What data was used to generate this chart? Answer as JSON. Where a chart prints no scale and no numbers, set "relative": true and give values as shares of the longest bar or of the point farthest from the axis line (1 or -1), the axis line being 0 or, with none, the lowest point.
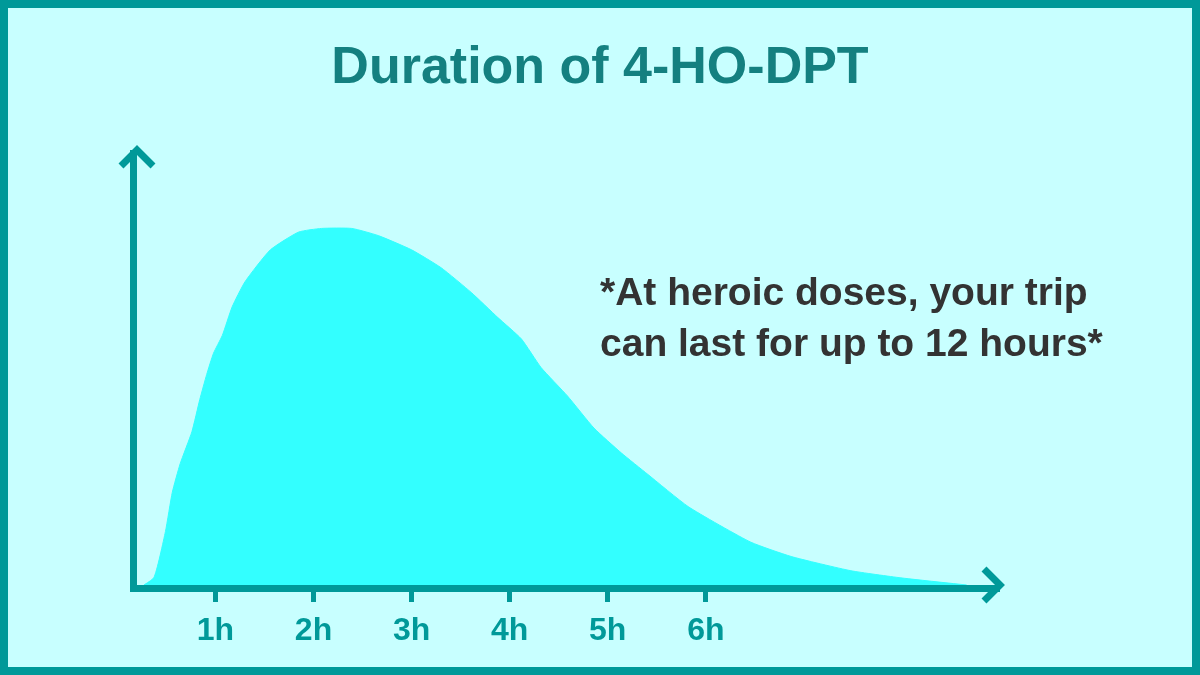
{
  "chart_data": {
    "type": "area",
    "title": "Duration of 4-HO-DPT",
    "x": [
      0.27,
      0.37,
      0.49,
      0.56,
      0.64,
      0.76,
      0.84,
      0.91,
      0.98,
      1.07,
      1.17,
      1.3,
      1.56,
      1.85,
      2.08,
      2.39,
      2.66,
      3.0,
      3.3,
      3.61,
      3.88,
      4.12,
      4.32,
      4.59,
      4.86,
      5.14,
      5.41,
      5.82,
      6.46,
      6.87,
      7.48,
      7.99,
      8.66
    ],
    "values": [
      0,
      0.02,
      0.15,
      0.26,
      0.34,
      0.43,
      0.52,
      0.59,
      0.65,
      0.7,
      0.78,
      0.85,
      0.94,
      0.99,
      1,
      1,
      0.98,
      0.94,
      0.89,
      0.82,
      0.75,
      0.69,
      0.61,
      0.53,
      0.44,
      0.37,
      0.31,
      0.22,
      0.12,
      0.08,
      0.04,
      0.02,
      0
    ],
    "color": "#33ffff",
    "relative": true,
    "xlim": [
      0.2,
      9
    ],
    "xticks": [
      {
        "value": 1,
        "label": "1h"
      },
      {
        "value": 2,
        "label": "2h"
      },
      {
        "value": 3,
        "label": "3h"
      },
      {
        "value": 4,
        "label": "4h"
      },
      {
        "value": 5,
        "label": "5h"
      },
      {
        "value": 6,
        "label": "6h"
      }
    ],
    "annotations": [
      "*At heroic doses, your trip can last for up to 12 hours*"
    ],
    "tick_labels": "x",
    "grid": false,
    "legend": false
  }
}
